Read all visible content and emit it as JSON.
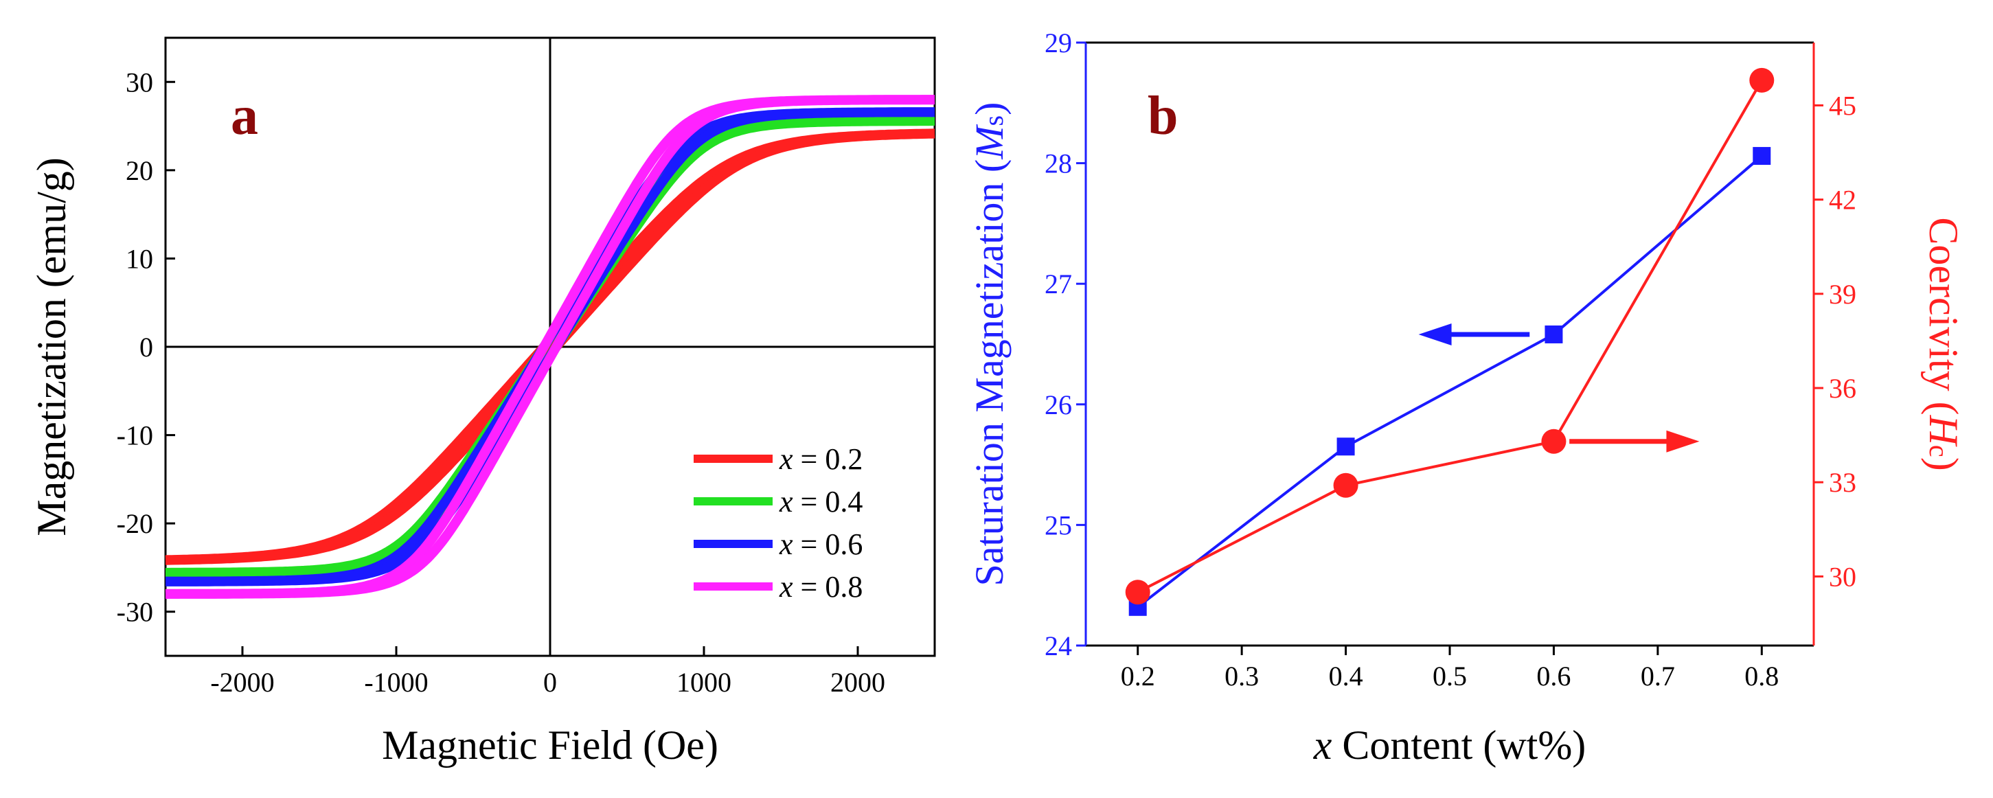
{
  "colors": {
    "red": "#ff2020",
    "green": "#22e022",
    "blue": "#1a1aff",
    "magenta": "#ff22ff",
    "axis_blue": "#1f1fff",
    "axis_red": "#ff2020",
    "label_darkred": "#8b0a0a"
  },
  "chart_data": [
    {
      "type": "line",
      "panel_label": "a",
      "xlabel": "Magnetic Field (Oe)",
      "ylabel": "Magnetization (emu/g)",
      "xlim": [
        -2500,
        2500
      ],
      "ylim": [
        -35,
        35
      ],
      "xticks": [
        -2000,
        -1000,
        0,
        1000,
        2000
      ],
      "yticks": [
        -30,
        -20,
        -10,
        0,
        10,
        20,
        30
      ],
      "xtick_labels": [
        "-2000",
        "-1000",
        "0",
        "1000",
        "2000"
      ],
      "ytick_labels": [
        "-30",
        "-20",
        "-10",
        "0",
        "10",
        "20",
        "30"
      ],
      "legend_position": "bottom-right",
      "series": [
        {
          "name": "x = 0.2",
          "var": "x",
          "value_text": " = 0.2",
          "color": "#ff2020",
          "ms": 24.3,
          "knee": 1250,
          "power": 5
        },
        {
          "name": "x = 0.4",
          "var": "x",
          "value_text": " = 0.4",
          "color": "#22e022",
          "ms": 25.6,
          "knee": 980,
          "power": 6
        },
        {
          "name": "x = 0.6",
          "var": "x",
          "value_text": " = 0.6",
          "color": "#1a1aff",
          "ms": 26.6,
          "knee": 960,
          "power": 6
        },
        {
          "name": "x = 0.8",
          "var": "x",
          "value_text": " = 0.8",
          "color": "#ff22ff",
          "ms": 28.0,
          "knee": 900,
          "power": 6
        }
      ]
    },
    {
      "type": "line",
      "panel_label": "b",
      "x": [
        0.2,
        0.4,
        0.6,
        0.8
      ],
      "xlabel_var": "x",
      "xlabel_rest": " Content (wt%)",
      "xlim": [
        0.15,
        0.85
      ],
      "xticks": [
        0.2,
        0.3,
        0.4,
        0.5,
        0.6,
        0.7,
        0.8
      ],
      "xtick_labels": [
        "0.2",
        "0.3",
        "0.4",
        "0.5",
        "0.6",
        "0.7",
        "0.8"
      ],
      "ylabel_left_text": "Saturation Magnetization (",
      "ylabel_left_var": "M",
      "ylabel_left_sub": "s",
      "ylabel_left_close": ")",
      "ylabel_right_text": "Coercivity (",
      "ylabel_right_var": "H",
      "ylabel_right_sub": "c",
      "ylabel_right_close": ")",
      "ylim_left": [
        24,
        29
      ],
      "yticks_left": [
        24,
        25,
        26,
        27,
        28,
        29
      ],
      "ytick_labels_left": [
        "24",
        "25",
        "26",
        "27",
        "28",
        "29"
      ],
      "ylim_right": [
        27.8,
        47
      ],
      "yticks_right": [
        30,
        33,
        36,
        39,
        42,
        45
      ],
      "ytick_labels_right": [
        "30",
        "33",
        "36",
        "39",
        "42",
        "45"
      ],
      "series": [
        {
          "name": "Saturation Magnetization",
          "axis": "left",
          "color": "#1a1aff",
          "marker": "square",
          "values": [
            24.32,
            25.65,
            26.58,
            28.06
          ]
        },
        {
          "name": "Coercivity",
          "axis": "right",
          "color": "#ff2020",
          "marker": "circle",
          "values": [
            29.5,
            32.9,
            34.3,
            45.8
          ]
        }
      ],
      "annotations": [
        {
          "name": "left-arrow",
          "direction": "left",
          "color": "#1a1aff",
          "points_to": "left-axis"
        },
        {
          "name": "right-arrow",
          "direction": "right",
          "color": "#ff2020",
          "points_to": "right-axis"
        }
      ]
    }
  ]
}
